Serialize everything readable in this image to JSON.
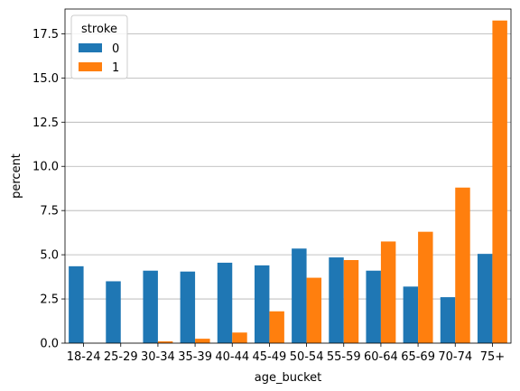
{
  "chart_data": {
    "type": "bar",
    "xlabel": "age_bucket",
    "ylabel": "percent",
    "ylim": [
      0,
      18.9
    ],
    "yticks": [
      "0.0",
      "2.5",
      "5.0",
      "7.5",
      "10.0",
      "12.5",
      "15.0",
      "17.5"
    ],
    "ytick_values": [
      0,
      2.5,
      5.0,
      7.5,
      10.0,
      12.5,
      15.0,
      17.5
    ],
    "grid": "horizontal",
    "legend": {
      "title": "stroke",
      "placement": "top-left"
    },
    "categories": [
      "18-24",
      "25-29",
      "30-34",
      "35-39",
      "40-44",
      "45-49",
      "50-54",
      "55-59",
      "60-64",
      "65-69",
      "70-74",
      "75+"
    ],
    "series": [
      {
        "name": "0",
        "color": "#1f77b4",
        "values": [
          4.35,
          3.5,
          4.1,
          4.05,
          4.55,
          4.4,
          5.35,
          4.85,
          4.1,
          3.2,
          2.6,
          5.05
        ]
      },
      {
        "name": "1",
        "color": "#ff7f0e",
        "values": [
          0.0,
          0.0,
          0.1,
          0.25,
          0.6,
          1.8,
          3.7,
          4.7,
          5.75,
          6.3,
          8.8,
          18.25
        ]
      }
    ]
  }
}
